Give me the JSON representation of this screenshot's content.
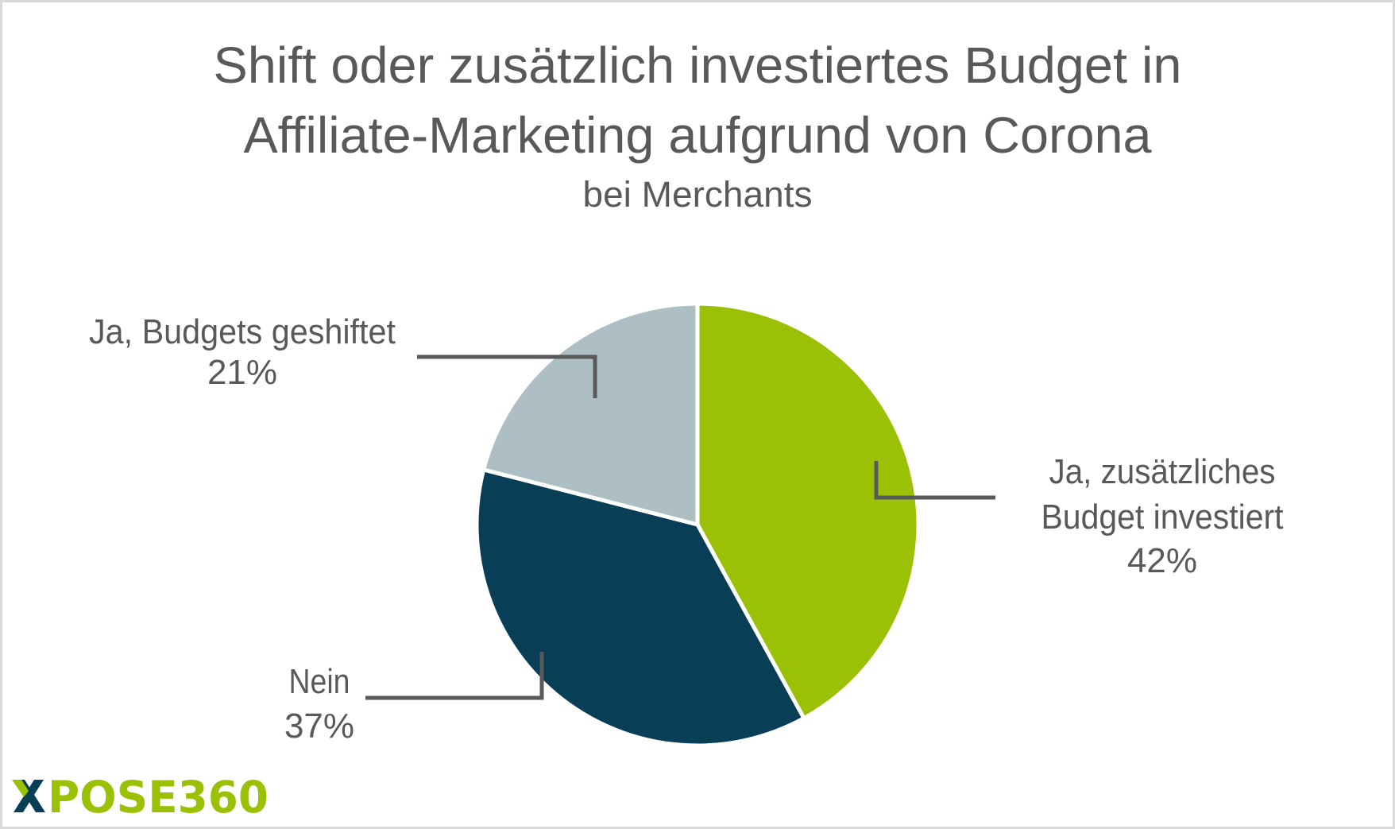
{
  "chart_data": {
    "type": "pie",
    "title": "Shift oder zusätzlich investiertes Budget in Affiliate-Marketing aufgrund von Corona",
    "title_lines": [
      "Shift oder zusätzlich investiertes Budget in",
      "Affiliate-Marketing aufgrund von Corona"
    ],
    "subtitle": "bei Merchants",
    "slices": [
      {
        "label": "Ja, zusätzliches Budget investiert",
        "label_lines": [
          "Ja, zusätzliches",
          "Budget investiert"
        ],
        "value": 42,
        "value_label": "42%",
        "color": "#9bc106"
      },
      {
        "label": "Nein",
        "label_lines": [
          "Nein"
        ],
        "value": 37,
        "value_label": "37%",
        "color": "#083f56"
      },
      {
        "label": "Ja, Budgets geshiftet",
        "label_lines": [
          "Ja, Budgets geshiftet"
        ],
        "value": 21,
        "value_label": "21%",
        "color": "#adbfc5"
      }
    ],
    "start_angle": "top",
    "direction": "clockwise",
    "legend": "none",
    "data_labels": "outside with leader lines"
  },
  "logo": {
    "text": "XPOSE360",
    "primary_color": "#9bc106",
    "secondary_color": "#083f56"
  },
  "colors": {
    "text": "#595959",
    "leader": "#595959",
    "background": "#ffffff",
    "border": "#d9d9d9"
  }
}
